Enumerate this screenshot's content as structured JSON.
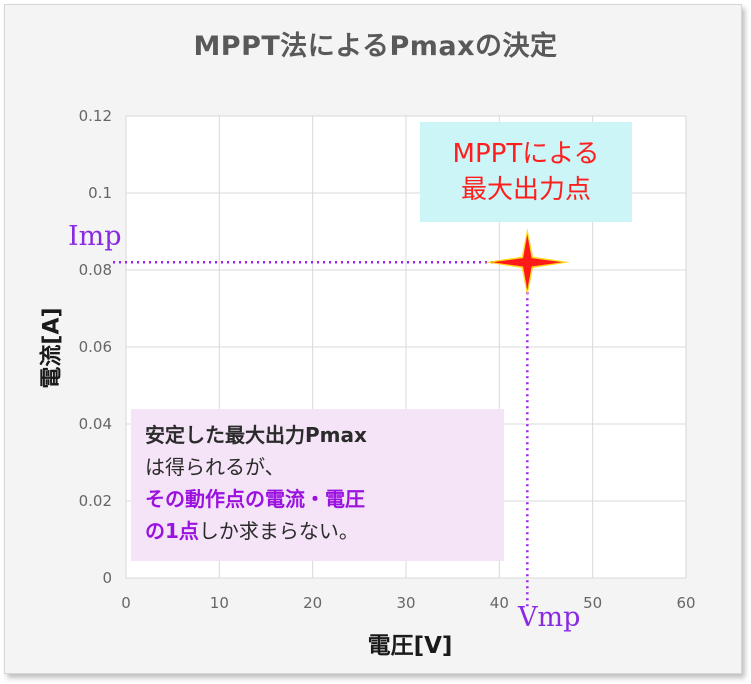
{
  "chart_data": {
    "type": "scatter",
    "title": "MPPT法によるPmaxの決定",
    "xlabel": "電圧[V]",
    "ylabel": "電流[A]",
    "xlim": [
      0,
      60
    ],
    "ylim": [
      0,
      0.12
    ],
    "x_ticks": [
      "0",
      "10",
      "20",
      "30",
      "40",
      "50",
      "60"
    ],
    "y_ticks": [
      "0",
      "0.02",
      "0.04",
      "0.06",
      "0.08",
      "0.1",
      "0.12"
    ],
    "grid": true,
    "series": [
      {
        "values": [
          {
            "x": 43,
            "y": 0.082
          }
        ]
      }
    ],
    "marker_color": "#ff1a1a",
    "guide_color": "#a020f0",
    "annotations": {
      "imp_label": "Imp",
      "vmp_label": "Vmp",
      "top_callout": [
        "MPPTによる",
        "最大出力点"
      ],
      "bottom_callout": {
        "line1": "安定した最大出力Pmax",
        "line2": "は得られるが、",
        "line3": "その動作点の電流・電圧",
        "line4_a": "の1点",
        "line4_b": "しか求まらない。"
      }
    }
  },
  "colors": {
    "frame_bg": "#f4f4f4",
    "plot_bg": "#ffffff",
    "top_callout_bg": "#ccf5f7",
    "top_callout_text": "#ff1e1e",
    "bottom_callout_bg": "#f5e4f7",
    "emphasis_purple": "#9b11e0"
  }
}
